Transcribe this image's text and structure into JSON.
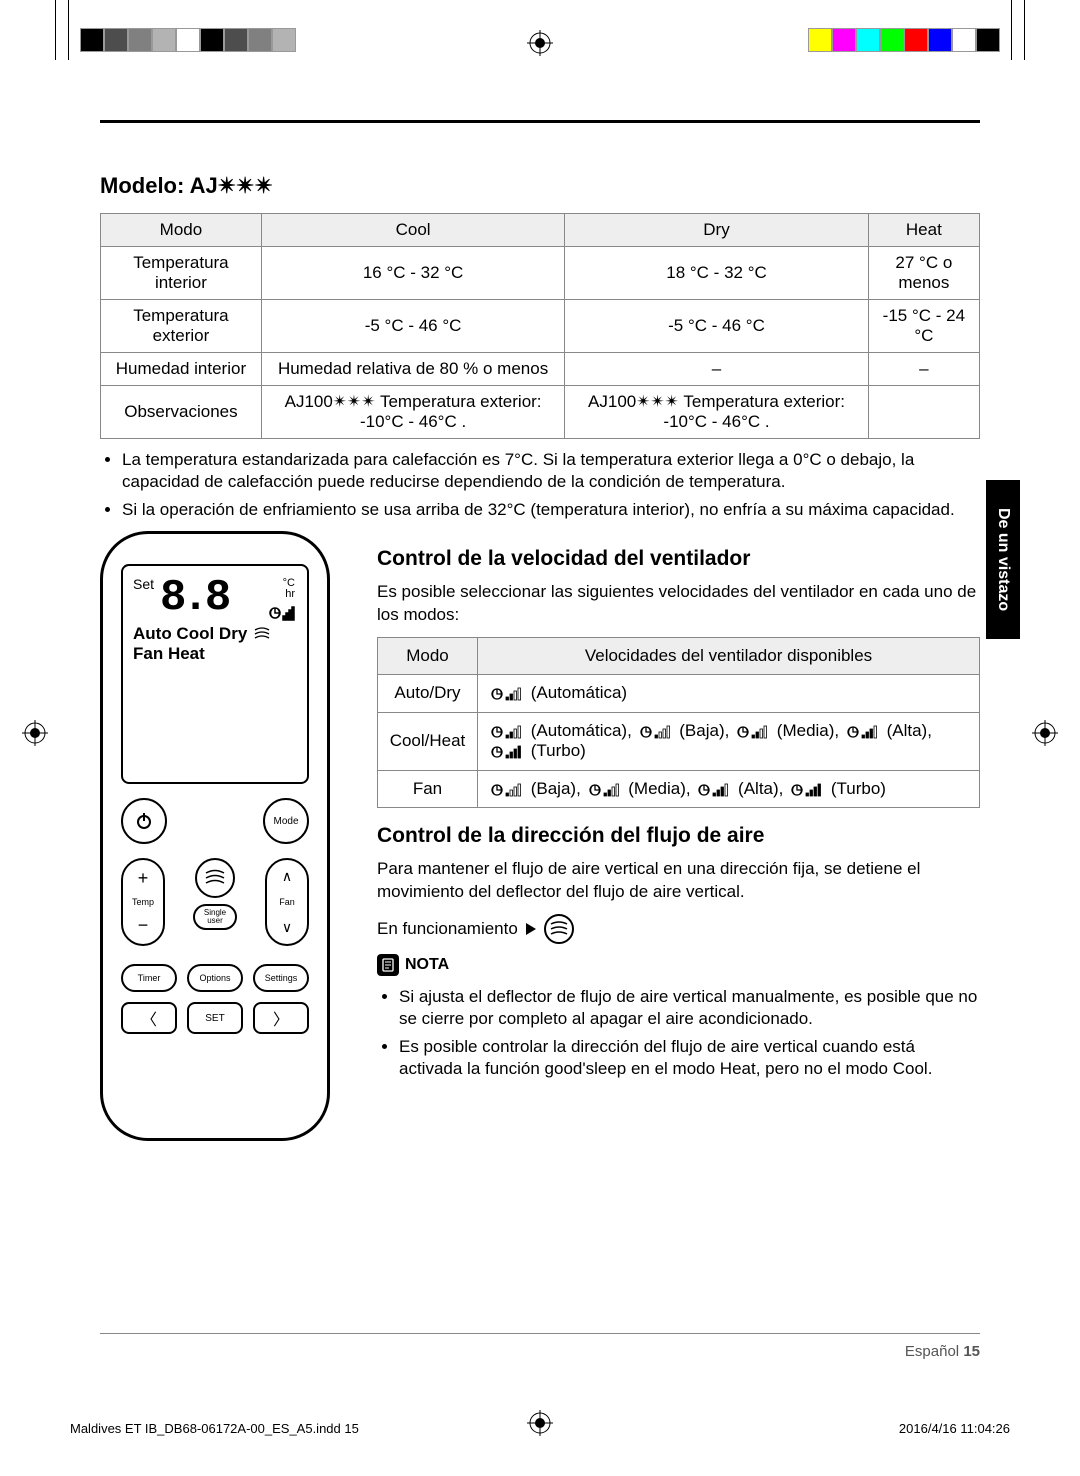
{
  "header_model": "Modelo: AJ✴✴✴",
  "spec_table": {
    "headers": [
      "Modo",
      "Cool",
      "Dry",
      "Heat"
    ],
    "rows": [
      [
        "Temperatura interior",
        "16 °C - 32 °C",
        "18 °C - 32 °C",
        "27 °C o menos"
      ],
      [
        "Temperatura exterior",
        "-5 °C - 46 °C",
        "-5 °C - 46 °C",
        "-15 °C - 24 °C"
      ],
      [
        "Humedad interior",
        "Humedad relativa de 80 % o menos",
        "–",
        "–"
      ],
      [
        "Observaciones",
        "AJ100✴✴✴ Temperatura exterior: -10°C - 46°C .",
        "AJ100✴✴✴ Temperatura exterior: -10°C - 46°C .",
        ""
      ]
    ]
  },
  "bullets_main": [
    "La temperatura estandarizada para calefacción es 7°C. Si la temperatura exterior llega a 0°C o debajo, la capacidad de calefacción puede reducirse dependiendo de la condición de temperatura.",
    "Si la operación de enfriamiento se usa arriba de 32°C (temperatura interior), no enfría a su máxima capacidad."
  ],
  "remote": {
    "set": "Set",
    "digits": "8.8",
    "unit_c": "°C",
    "unit_hr": "hr",
    "modes_line1": "Auto Cool Dry",
    "modes_line2": "Fan   Heat",
    "btn_mode": "Mode",
    "btn_temp": "Temp",
    "btn_fan": "Fan",
    "btn_single": "Single user",
    "btn_timer": "Timer",
    "btn_options": "Options",
    "btn_settings": "Settings",
    "btn_set": "SET"
  },
  "fan_section": {
    "title": "Control de la velocidad del ventilador",
    "intro": "Es posible seleccionar las siguientes velocidades del ventilador en cada uno de los modos:",
    "headers": [
      "Modo",
      "Velocidades del ventilador disponibles"
    ],
    "rows": [
      {
        "mode": "Auto/Dry",
        "speeds": [
          {
            "bars": 2,
            "label": "(Automática)"
          }
        ]
      },
      {
        "mode": "Cool/Heat",
        "speeds": [
          {
            "bars": 2,
            "label": "(Automática),"
          },
          {
            "bars": 1,
            "label": "(Baja),"
          },
          {
            "bars": 2,
            "label": "(Media),"
          },
          {
            "bars": 3,
            "label": "(Alta),"
          },
          {
            "bars": 4,
            "label": "(Turbo)"
          }
        ]
      },
      {
        "mode": "Fan",
        "speeds": [
          {
            "bars": 1,
            "label": "(Baja),"
          },
          {
            "bars": 2,
            "label": "(Media),"
          },
          {
            "bars": 3,
            "label": "(Alta),"
          },
          {
            "bars": 4,
            "label": "(Turbo)"
          }
        ]
      }
    ]
  },
  "air_section": {
    "title": "Control de la dirección del flujo de aire",
    "desc": "Para mantener el flujo de aire vertical en una dirección fija, se detiene el movimiento del deflector del flujo de aire vertical.",
    "en_func": "En funcionamiento",
    "nota_label": "NOTA",
    "notes": [
      "Si ajusta el deflector de flujo de aire vertical manualmente, es posible que no se cierre por completo al apagar el aire acondicionado.",
      "Es posible controlar la dirección del flujo de aire vertical cuando está activada la función good'sleep en el modo Heat, pero no el modo Cool."
    ]
  },
  "side_tab": "De un vistazo",
  "footer": {
    "lang": "Español",
    "page": "15",
    "indd": "Maldives ET IB_DB68-06172A-00_ES_A5.indd   15",
    "date": "2016/4/16   11:04:26"
  },
  "colorbars": {
    "left": [
      "#000000",
      "#4d4d4d",
      "#808080",
      "#b3b3b3",
      "#ffffff",
      "#000000",
      "#4d4d4d",
      "#808080",
      "#b3b3b3"
    ],
    "right": [
      "#ffff00",
      "#ff00ff",
      "#00ffff",
      "#00ff00",
      "#ff0000",
      "#0000ff",
      "#ffffff",
      "#000000"
    ]
  }
}
